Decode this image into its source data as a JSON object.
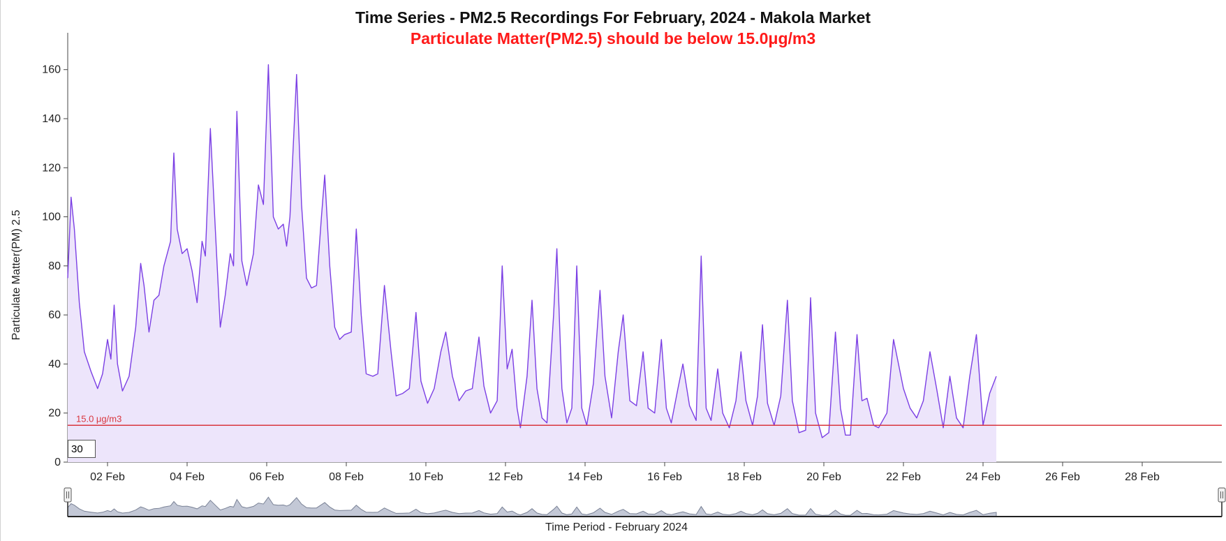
{
  "chart_data": {
    "type": "area",
    "title": "Time Series - PM2.5 Recordings For February, 2024 - Makola Market",
    "subtitle": "Particulate Matter(PM2.5) should be below 15.0μg/m3",
    "ylabel": "Particulate Matter(PM) 2.5",
    "xlabel": "Time Period - February 2024",
    "threshold": {
      "value": 15,
      "label": "15.0 μg/m3"
    },
    "rolling_period": "30",
    "xlim": [
      "2024-02-01",
      "2024-03-01"
    ],
    "ylim": [
      0,
      175
    ],
    "y_ticks": [
      0,
      20,
      40,
      60,
      80,
      100,
      120,
      140,
      160
    ],
    "x_ticks": [
      {
        "date": "2024-02-02",
        "label": "02 Feb"
      },
      {
        "date": "2024-02-04",
        "label": "04 Feb"
      },
      {
        "date": "2024-02-06",
        "label": "06 Feb"
      },
      {
        "date": "2024-02-08",
        "label": "08 Feb"
      },
      {
        "date": "2024-02-10",
        "label": "10 Feb"
      },
      {
        "date": "2024-02-12",
        "label": "12 Feb"
      },
      {
        "date": "2024-02-14",
        "label": "14 Feb"
      },
      {
        "date": "2024-02-16",
        "label": "16 Feb"
      },
      {
        "date": "2024-02-18",
        "label": "18 Feb"
      },
      {
        "date": "2024-02-20",
        "label": "20 Feb"
      },
      {
        "date": "2024-02-22",
        "label": "22 Feb"
      },
      {
        "date": "2024-02-24",
        "label": "24 Feb"
      },
      {
        "date": "2024-02-26",
        "label": "26 Feb"
      },
      {
        "date": "2024-02-28",
        "label": "28 Feb"
      }
    ],
    "grid": false,
    "colors": {
      "line": "#7b3fe4",
      "fill": "#ede5fb",
      "threshold": "#d9363e",
      "subtitle": "#ff1a1a",
      "navigator_fill": "#c3c8d6",
      "navigator_line": "#7a8296"
    },
    "series": [
      {
        "points": [
          [
            "2024-02-01 00:00",
            75
          ],
          [
            "2024-02-01 02:00",
            108
          ],
          [
            "2024-02-01 04:00",
            95
          ],
          [
            "2024-02-01 07:00",
            65
          ],
          [
            "2024-02-01 10:00",
            45
          ],
          [
            "2024-02-01 14:00",
            37
          ],
          [
            "2024-02-01 18:00",
            30
          ],
          [
            "2024-02-01 21:00",
            36
          ],
          [
            "2024-02-02 00:00",
            50
          ],
          [
            "2024-02-02 02:00",
            42
          ],
          [
            "2024-02-02 04:00",
            64
          ],
          [
            "2024-02-02 06:00",
            40
          ],
          [
            "2024-02-02 09:00",
            29
          ],
          [
            "2024-02-02 13:00",
            35
          ],
          [
            "2024-02-02 17:00",
            55
          ],
          [
            "2024-02-02 20:00",
            81
          ],
          [
            "2024-02-02 22:00",
            72
          ],
          [
            "2024-02-03 01:00",
            53
          ],
          [
            "2024-02-03 04:00",
            66
          ],
          [
            "2024-02-03 07:00",
            68
          ],
          [
            "2024-02-03 10:00",
            80
          ],
          [
            "2024-02-03 14:00",
            90
          ],
          [
            "2024-02-03 16:00",
            126
          ],
          [
            "2024-02-03 18:00",
            95
          ],
          [
            "2024-02-03 21:00",
            85
          ],
          [
            "2024-02-04 00:00",
            87
          ],
          [
            "2024-02-04 03:00",
            78
          ],
          [
            "2024-02-04 06:00",
            65
          ],
          [
            "2024-02-04 09:00",
            90
          ],
          [
            "2024-02-04 11:00",
            84
          ],
          [
            "2024-02-04 14:00",
            136
          ],
          [
            "2024-02-04 17:00",
            95
          ],
          [
            "2024-02-04 20:00",
            55
          ],
          [
            "2024-02-04 23:00",
            68
          ],
          [
            "2024-02-05 02:00",
            85
          ],
          [
            "2024-02-05 04:00",
            80
          ],
          [
            "2024-02-05 06:00",
            143
          ],
          [
            "2024-02-05 09:00",
            82
          ],
          [
            "2024-02-05 12:00",
            72
          ],
          [
            "2024-02-05 16:00",
            85
          ],
          [
            "2024-02-05 19:00",
            113
          ],
          [
            "2024-02-05 22:00",
            105
          ],
          [
            "2024-02-06 01:00",
            162
          ],
          [
            "2024-02-06 04:00",
            100
          ],
          [
            "2024-02-06 07:00",
            95
          ],
          [
            "2024-02-06 10:00",
            97
          ],
          [
            "2024-02-06 12:00",
            88
          ],
          [
            "2024-02-06 14:00",
            100
          ],
          [
            "2024-02-06 18:00",
            158
          ],
          [
            "2024-02-06 21:00",
            105
          ],
          [
            "2024-02-07 00:00",
            75
          ],
          [
            "2024-02-07 03:00",
            71
          ],
          [
            "2024-02-07 06:00",
            72
          ],
          [
            "2024-02-07 09:00",
            100
          ],
          [
            "2024-02-07 11:00",
            117
          ],
          [
            "2024-02-07 14:00",
            80
          ],
          [
            "2024-02-07 17:00",
            55
          ],
          [
            "2024-02-07 20:00",
            50
          ],
          [
            "2024-02-07 23:00",
            52
          ],
          [
            "2024-02-08 03:00",
            53
          ],
          [
            "2024-02-08 06:00",
            95
          ],
          [
            "2024-02-08 09:00",
            60
          ],
          [
            "2024-02-08 12:00",
            36
          ],
          [
            "2024-02-08 16:00",
            35
          ],
          [
            "2024-02-08 19:00",
            36
          ],
          [
            "2024-02-08 23:00",
            72
          ],
          [
            "2024-02-09 03:00",
            45
          ],
          [
            "2024-02-09 06:00",
            27
          ],
          [
            "2024-02-09 10:00",
            28
          ],
          [
            "2024-02-09 14:00",
            30
          ],
          [
            "2024-02-09 18:00",
            61
          ],
          [
            "2024-02-09 21:00",
            33
          ],
          [
            "2024-02-10 01:00",
            24
          ],
          [
            "2024-02-10 05:00",
            30
          ],
          [
            "2024-02-10 09:00",
            45
          ],
          [
            "2024-02-10 12:00",
            53
          ],
          [
            "2024-02-10 16:00",
            35
          ],
          [
            "2024-02-10 20:00",
            25
          ],
          [
            "2024-02-11 00:00",
            29
          ],
          [
            "2024-02-11 04:00",
            30
          ],
          [
            "2024-02-11 08:00",
            51
          ],
          [
            "2024-02-11 11:00",
            31
          ],
          [
            "2024-02-11 15:00",
            20
          ],
          [
            "2024-02-11 19:00",
            25
          ],
          [
            "2024-02-11 22:00",
            80
          ],
          [
            "2024-02-12 01:00",
            38
          ],
          [
            "2024-02-12 04:00",
            46
          ],
          [
            "2024-02-12 07:00",
            22
          ],
          [
            "2024-02-12 09:00",
            14
          ],
          [
            "2024-02-12 13:00",
            35
          ],
          [
            "2024-02-12 16:00",
            66
          ],
          [
            "2024-02-12 19:00",
            30
          ],
          [
            "2024-02-12 22:00",
            18
          ],
          [
            "2024-02-13 01:00",
            16
          ],
          [
            "2024-02-13 05:00",
            60
          ],
          [
            "2024-02-13 07:00",
            87
          ],
          [
            "2024-02-13 10:00",
            30
          ],
          [
            "2024-02-13 13:00",
            16
          ],
          [
            "2024-02-13 16:00",
            22
          ],
          [
            "2024-02-13 19:00",
            80
          ],
          [
            "2024-02-13 22:00",
            22
          ],
          [
            "2024-02-14 01:00",
            15
          ],
          [
            "2024-02-14 05:00",
            32
          ],
          [
            "2024-02-14 09:00",
            70
          ],
          [
            "2024-02-14 12:00",
            35
          ],
          [
            "2024-02-14 16:00",
            18
          ],
          [
            "2024-02-14 20:00",
            45
          ],
          [
            "2024-02-14 23:00",
            60
          ],
          [
            "2024-02-15 03:00",
            25
          ],
          [
            "2024-02-15 07:00",
            23
          ],
          [
            "2024-02-15 11:00",
            45
          ],
          [
            "2024-02-15 14:00",
            22
          ],
          [
            "2024-02-15 18:00",
            20
          ],
          [
            "2024-02-15 22:00",
            50
          ],
          [
            "2024-02-16 01:00",
            22
          ],
          [
            "2024-02-16 04:00",
            16
          ],
          [
            "2024-02-16 08:00",
            30
          ],
          [
            "2024-02-16 11:00",
            40
          ],
          [
            "2024-02-16 15:00",
            23
          ],
          [
            "2024-02-16 19:00",
            17
          ],
          [
            "2024-02-16 22:00",
            84
          ],
          [
            "2024-02-17 01:00",
            22
          ],
          [
            "2024-02-17 04:00",
            17
          ],
          [
            "2024-02-17 08:00",
            38
          ],
          [
            "2024-02-17 11:00",
            20
          ],
          [
            "2024-02-17 15:00",
            14
          ],
          [
            "2024-02-17 19:00",
            25
          ],
          [
            "2024-02-17 22:00",
            45
          ],
          [
            "2024-02-18 01:00",
            25
          ],
          [
            "2024-02-18 05:00",
            15
          ],
          [
            "2024-02-18 08:00",
            27
          ],
          [
            "2024-02-18 11:00",
            56
          ],
          [
            "2024-02-18 14:00",
            24
          ],
          [
            "2024-02-18 18:00",
            15
          ],
          [
            "2024-02-18 22:00",
            27
          ],
          [
            "2024-02-19 02:00",
            66
          ],
          [
            "2024-02-19 05:00",
            25
          ],
          [
            "2024-02-19 09:00",
            12
          ],
          [
            "2024-02-19 13:00",
            13
          ],
          [
            "2024-02-19 16:00",
            67
          ],
          [
            "2024-02-19 19:00",
            20
          ],
          [
            "2024-02-19 23:00",
            10
          ],
          [
            "2024-02-20 03:00",
            12
          ],
          [
            "2024-02-20 07:00",
            53
          ],
          [
            "2024-02-20 10:00",
            22
          ],
          [
            "2024-02-20 13:00",
            11
          ],
          [
            "2024-02-20 16:00",
            11
          ],
          [
            "2024-02-20 20:00",
            52
          ],
          [
            "2024-02-20 23:00",
            25
          ],
          [
            "2024-02-21 02:00",
            26
          ],
          [
            "2024-02-21 06:00",
            15
          ],
          [
            "2024-02-21 09:00",
            14
          ],
          [
            "2024-02-21 14:00",
            20
          ],
          [
            "2024-02-21 18:00",
            50
          ],
          [
            "2024-02-21 21:00",
            40
          ],
          [
            "2024-02-22 00:00",
            30
          ],
          [
            "2024-02-22 04:00",
            22
          ],
          [
            "2024-02-22 08:00",
            18
          ],
          [
            "2024-02-22 12:00",
            25
          ],
          [
            "2024-02-22 16:00",
            45
          ],
          [
            "2024-02-22 20:00",
            30
          ],
          [
            "2024-02-23 00:00",
            14
          ],
          [
            "2024-02-23 04:00",
            35
          ],
          [
            "2024-02-23 08:00",
            18
          ],
          [
            "2024-02-23 12:00",
            14
          ],
          [
            "2024-02-23 16:00",
            35
          ],
          [
            "2024-02-23 20:00",
            52
          ],
          [
            "2024-02-24 00:00",
            15
          ],
          [
            "2024-02-24 04:00",
            28
          ],
          [
            "2024-02-24 08:00",
            35
          ]
        ]
      }
    ]
  }
}
